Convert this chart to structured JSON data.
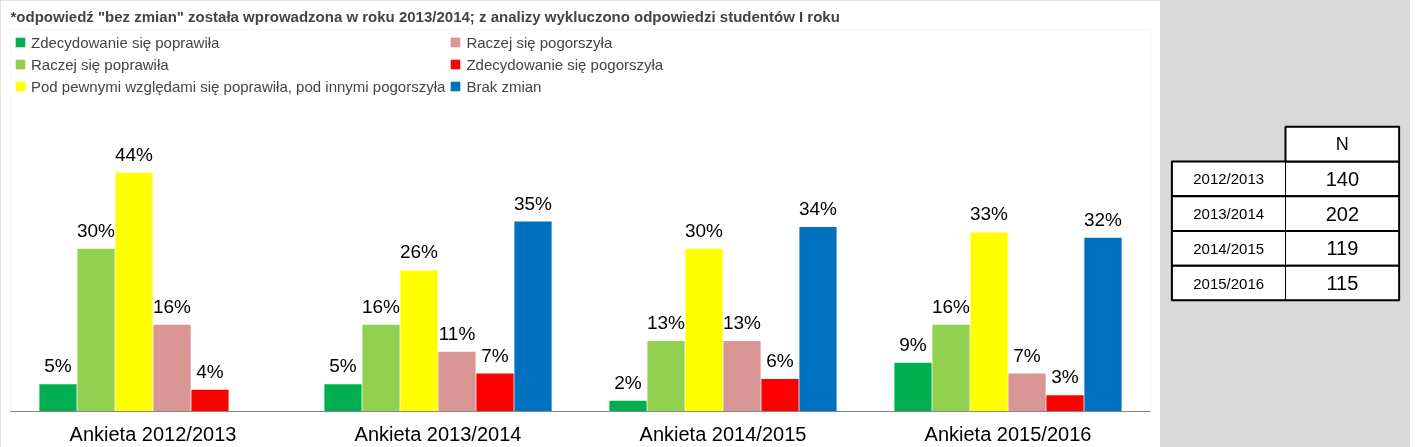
{
  "chart_data": [
    {
      "type": "bar",
      "title": "*odpowiedź \"bez zmian\" została wprowadzona w roku 2013/2014; z analizy wykluczono odpowiedzi studentów I roku",
      "categories": [
        "Ankieta 2012/2013",
        "Ankieta 2013/2014",
        "Ankieta 2014/2015",
        "Ankieta 2015/2016"
      ],
      "legend": "top",
      "series": [
        {
          "name": "Zdecydowanie się poprawiła",
          "color": "#00b050",
          "values": [
            5,
            5,
            2,
            9
          ],
          "value_labels": [
            "5%",
            "5%",
            "2%",
            "9%"
          ]
        },
        {
          "name": "Raczej się poprawiła",
          "color": "#92d050",
          "values": [
            30,
            16,
            13,
            16
          ],
          "value_labels": [
            "30%",
            "16%",
            "13%",
            "16%"
          ]
        },
        {
          "name": "Pod pewnymi względami się poprawiła, pod innymi pogorszyła",
          "color": "#ffff00",
          "values": [
            44,
            26,
            30,
            33
          ],
          "value_labels": [
            "44%",
            "26%",
            "30%",
            "33%"
          ]
        },
        {
          "name": "Raczej się pogorszyła",
          "color": "#da9694",
          "values": [
            16,
            11,
            13,
            7
          ],
          "value_labels": [
            "16%",
            "11%",
            "13%",
            "7%"
          ]
        },
        {
          "name": "Zdecydowanie się pogorszyła",
          "color": "#ff0000",
          "values": [
            4,
            7,
            6,
            3
          ],
          "value_labels": [
            "4%",
            "7%",
            "6%",
            "3%"
          ]
        },
        {
          "name": "Brak zmian",
          "color": "#0070c0",
          "values": [
            null,
            35,
            34,
            32
          ],
          "value_labels": [
            null,
            "35%",
            "34%",
            "32%"
          ]
        }
      ]
    },
    {
      "type": "other",
      "title": "N",
      "categories": [
        "2012/2013",
        "2013/2014",
        "2014/2015",
        "2015/2016"
      ],
      "values": [
        140,
        202,
        119,
        115
      ],
      "data_labels": true
    }
  ]
}
